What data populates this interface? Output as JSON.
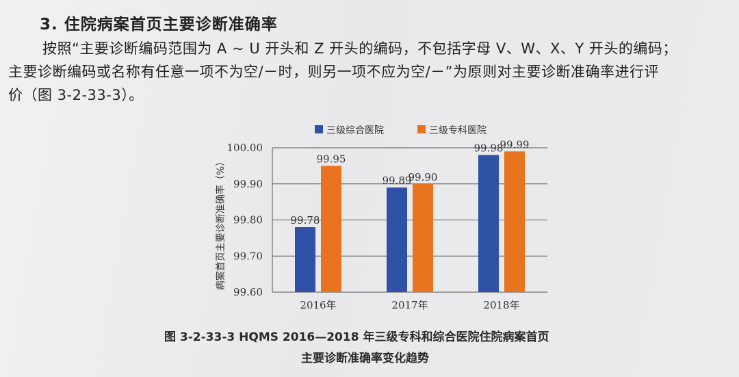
{
  "section": {
    "heading": "3. 住院病案首页主要诊断准确率"
  },
  "paragraph": {
    "line1": "按照“主要诊断编码范围为 A ~ U 开头和 Z 开头的编码，不包括字母 V、W、X、Y 开头的编码；",
    "line2": "主要诊断编码或名称有任意一项不为空/－时，则另一项不应为空/－”为原则对主要诊断准确率进行评",
    "line3": "价（图 3-2-33-3）。"
  },
  "figure": {
    "caption_line1": "图 3-2-33-3    HQMS 2016—2018 年三级专科和综合医院住院病案首页",
    "caption_line2": "主要诊断准确率变化趋势"
  },
  "colors": {
    "series_general": "#2f51a6",
    "series_specialty": "#e8741f",
    "grid": "#555555"
  },
  "chart_data": {
    "type": "bar",
    "categories": [
      "2016年",
      "2017年",
      "2018年"
    ],
    "series": [
      {
        "name": "三级综合医院",
        "values": [
          99.78,
          99.89,
          99.98
        ]
      },
      {
        "name": "三级专科医院",
        "values": [
          99.95,
          99.9,
          99.99
        ]
      }
    ],
    "value_labels": [
      [
        "99.78",
        "99.89",
        "99.98"
      ],
      [
        "99.95",
        "99.90",
        "99.99"
      ]
    ],
    "ylabel": "病案首页主要诊断准确率（%）",
    "xlabel": "",
    "ylim": [
      99.6,
      100.0
    ],
    "yticks": [
      "99.60",
      "99.70",
      "99.80",
      "99.90",
      "100.00"
    ],
    "grid": true,
    "legend_position": "top"
  }
}
